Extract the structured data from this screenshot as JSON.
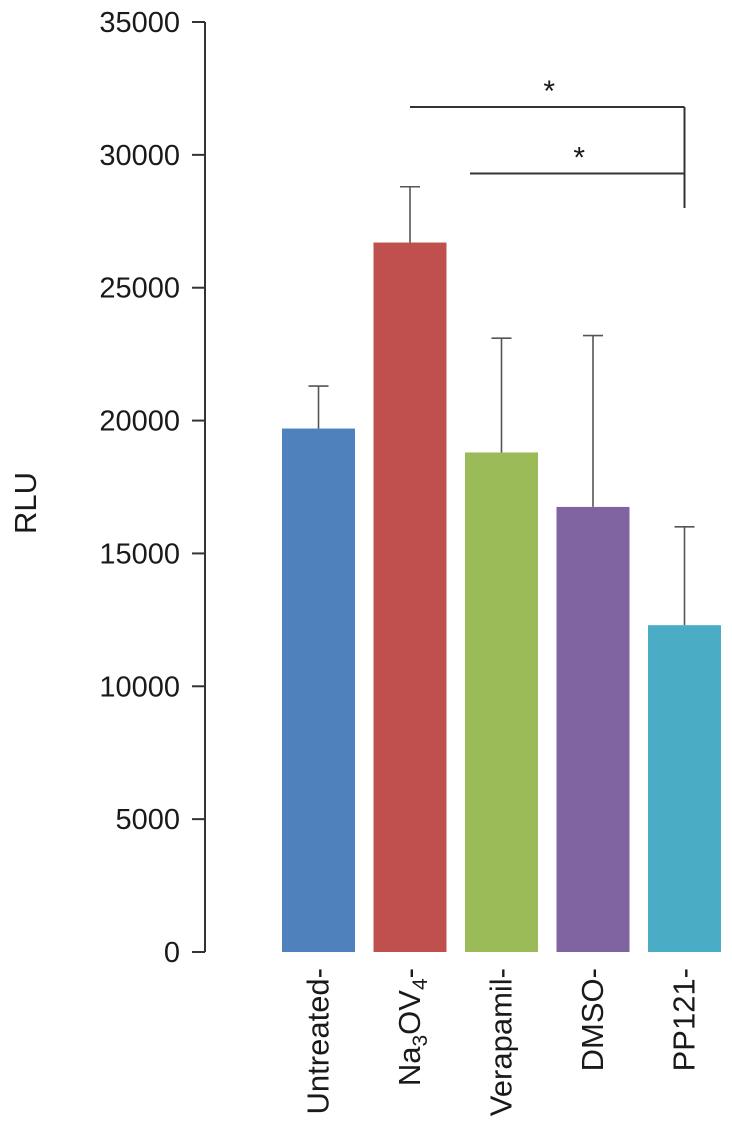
{
  "chart_data": {
    "type": "bar",
    "title": "",
    "xlabel": "",
    "ylabel": "RLU",
    "ylim": [
      0,
      35000
    ],
    "yticks": [
      0,
      5000,
      10000,
      15000,
      20000,
      25000,
      30000,
      35000
    ],
    "ytick_labels": [
      "0",
      "5000",
      "10000",
      "15000",
      "20000",
      "25000",
      "30000",
      "35000"
    ],
    "grid": false,
    "categories": [
      {
        "label": "Untreated-"
      },
      {
        "label": "Na",
        "sub1": "3",
        "mid": "OV",
        "sub2": "4",
        "suffix": "-"
      },
      {
        "label": "Verapamil-"
      },
      {
        "label": "DMSO-"
      },
      {
        "label": "PP121-"
      }
    ],
    "values": [
      19700,
      26700,
      18800,
      16750,
      12300
    ],
    "errors": [
      1600,
      2100,
      4300,
      6450,
      3700
    ],
    "colors": [
      "#4f81bd",
      "#c0504d",
      "#9bbb59",
      "#8064a2",
      "#4bacc6"
    ],
    "significance": [
      {
        "from": 1,
        "to": 4,
        "label": "*",
        "y": 31800,
        "drop_to": 29000
      },
      {
        "from": 2,
        "to": 4,
        "label": "*",
        "y": 29300,
        "drop_to": 28000
      }
    ]
  }
}
